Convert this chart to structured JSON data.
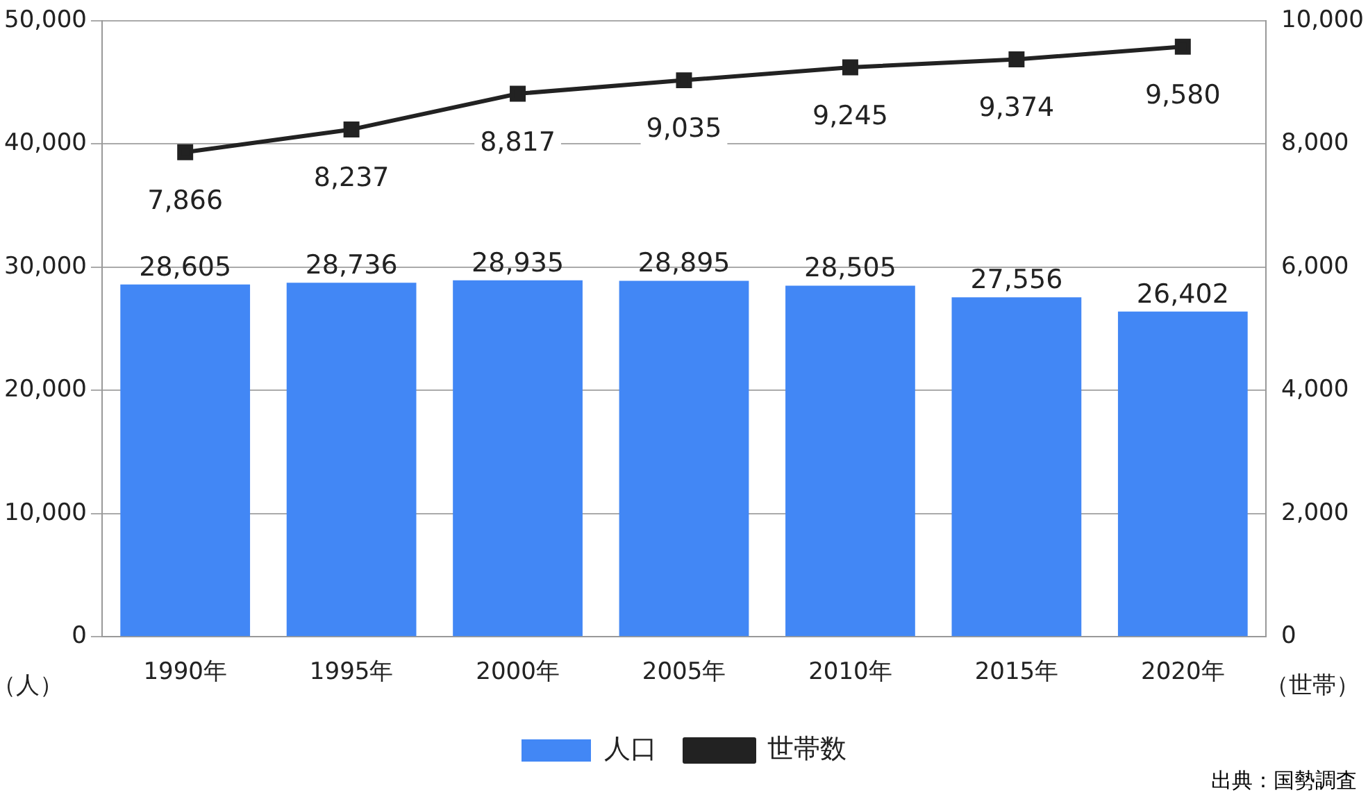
{
  "chart_data": {
    "type": "bar",
    "categories": [
      "1990年",
      "1995年",
      "2000年",
      "2005年",
      "2010年",
      "2015年",
      "2020年"
    ],
    "series": [
      {
        "name": "人口",
        "color": "#4287f5",
        "values": [
          28605,
          28736,
          28935,
          28895,
          28505,
          27556,
          26402
        ],
        "value_labels": [
          "28,605",
          "28,736",
          "28,935",
          "28,895",
          "28,505",
          "27,556",
          "26,402"
        ]
      },
      {
        "name": "世帯数",
        "type": "line",
        "axis": "y2",
        "color": "#222222",
        "marker": "square",
        "values": [
          7866,
          8237,
          8817,
          9035,
          9245,
          9374,
          9580
        ],
        "value_labels": [
          "7,866",
          "8,237",
          "8,817",
          "9,035",
          "9,245",
          "9,374",
          "9,580"
        ]
      }
    ],
    "ylabel": "（人）",
    "y2label": "（世帯）",
    "ylim": [
      0,
      50000
    ],
    "yticks": [
      {
        "value": 0,
        "label": "0"
      },
      {
        "value": 10000,
        "label": "10,000"
      },
      {
        "value": 20000,
        "label": "20,000"
      },
      {
        "value": 30000,
        "label": "30,000"
      },
      {
        "value": 40000,
        "label": "40,000"
      },
      {
        "value": 50000,
        "label": "50,000"
      }
    ],
    "y2lim": [
      0,
      10000
    ],
    "y2ticks": [
      {
        "value": 0,
        "label": "0"
      },
      {
        "value": 2000,
        "label": "2,000"
      },
      {
        "value": 4000,
        "label": "4,000"
      },
      {
        "value": 6000,
        "label": "6,000"
      },
      {
        "value": 8000,
        "label": "8,000"
      },
      {
        "value": 10000,
        "label": "10,000"
      }
    ],
    "grid": "y",
    "legend": "bottom",
    "annotations": [
      "出典：国勢調査"
    ]
  }
}
